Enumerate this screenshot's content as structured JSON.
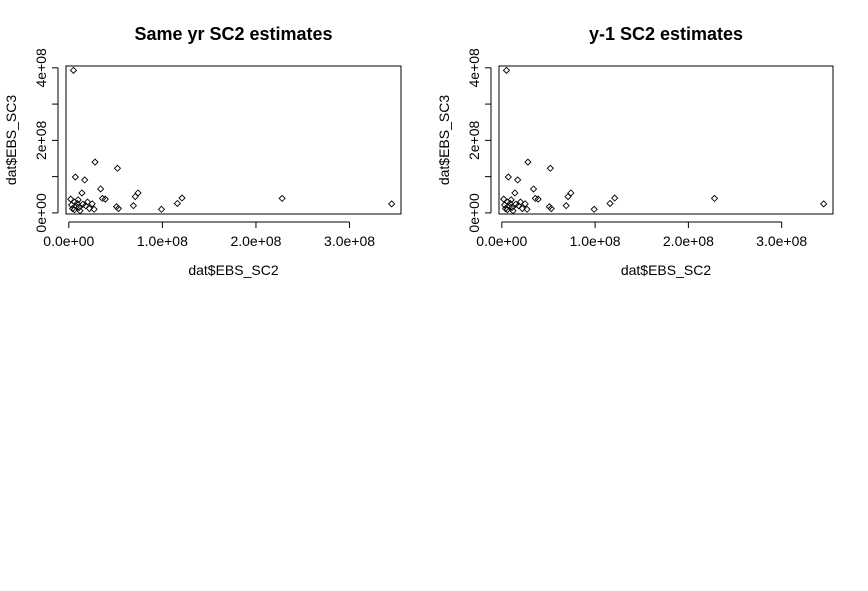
{
  "chart_data": [
    {
      "type": "scatter",
      "title": "Same yr SC2 estimates",
      "xlabel": "dat$EBS_SC2",
      "ylabel": "dat$EBS_SC3",
      "xlim": [
        -3000000,
        355000000
      ],
      "ylim": [
        -3000000,
        405000000
      ],
      "xticks": [
        0,
        100000000,
        200000000,
        300000000
      ],
      "xtick_labels": [
        "0.0e+00",
        "1.0e+08",
        "2.0e+08",
        "3.0e+08"
      ],
      "yticks": [
        0,
        100000000,
        200000000,
        300000000,
        400000000
      ],
      "ytick_labels": [
        "0e+00",
        "",
        "2e+08",
        "",
        "4e+08"
      ],
      "grid": false,
      "points": [
        [
          5000000,
          393000000
        ],
        [
          7000000,
          99000000
        ],
        [
          28000000,
          140000000
        ],
        [
          17000000,
          91000000
        ],
        [
          52000000,
          123000000
        ],
        [
          34000000,
          66000000
        ],
        [
          14000000,
          55000000
        ],
        [
          2000000,
          38000000
        ],
        [
          6000000,
          30000000
        ],
        [
          10000000,
          36000000
        ],
        [
          3000000,
          22000000
        ],
        [
          4000000,
          12000000
        ],
        [
          6000000,
          9000000
        ],
        [
          8000000,
          18000000
        ],
        [
          9000000,
          26000000
        ],
        [
          11000000,
          15000000
        ],
        [
          12000000,
          6000000
        ],
        [
          15000000,
          24000000
        ],
        [
          18000000,
          20000000
        ],
        [
          20000000,
          30000000
        ],
        [
          22000000,
          12000000
        ],
        [
          25000000,
          25000000
        ],
        [
          27000000,
          10000000
        ],
        [
          36000000,
          40000000
        ],
        [
          39000000,
          38000000
        ],
        [
          51000000,
          17000000
        ],
        [
          53000000,
          12000000
        ],
        [
          71000000,
          45000000
        ],
        [
          74000000,
          55000000
        ],
        [
          69000000,
          20000000
        ],
        [
          99000000,
          10000000
        ],
        [
          116000000,
          26000000
        ],
        [
          121000000,
          41000000
        ],
        [
          228000000,
          40000000
        ],
        [
          345000000,
          25000000
        ]
      ]
    },
    {
      "type": "scatter",
      "title": "y-1 SC2 estimates",
      "xlabel": "dat$EBS_SC2",
      "ylabel": "dat$EBS_SC3",
      "xlim": [
        -3000000,
        355000000
      ],
      "ylim": [
        -3000000,
        405000000
      ],
      "xticks": [
        0,
        100000000,
        200000000,
        300000000
      ],
      "xtick_labels": [
        "0.0e+00",
        "1.0e+08",
        "2.0e+08",
        "3.0e+08"
      ],
      "yticks": [
        0,
        100000000,
        200000000,
        300000000,
        400000000
      ],
      "ytick_labels": [
        "0e+00",
        "",
        "2e+08",
        "",
        "4e+08"
      ],
      "grid": false,
      "points": [
        [
          5000000,
          393000000
        ],
        [
          7000000,
          99000000
        ],
        [
          28000000,
          140000000
        ],
        [
          17000000,
          91000000
        ],
        [
          52000000,
          123000000
        ],
        [
          34000000,
          66000000
        ],
        [
          14000000,
          55000000
        ],
        [
          2000000,
          38000000
        ],
        [
          6000000,
          30000000
        ],
        [
          10000000,
          36000000
        ],
        [
          3000000,
          22000000
        ],
        [
          4000000,
          12000000
        ],
        [
          6000000,
          9000000
        ],
        [
          8000000,
          18000000
        ],
        [
          9000000,
          26000000
        ],
        [
          11000000,
          15000000
        ],
        [
          12000000,
          6000000
        ],
        [
          15000000,
          24000000
        ],
        [
          18000000,
          20000000
        ],
        [
          20000000,
          30000000
        ],
        [
          22000000,
          12000000
        ],
        [
          25000000,
          25000000
        ],
        [
          27000000,
          10000000
        ],
        [
          36000000,
          40000000
        ],
        [
          39000000,
          38000000
        ],
        [
          51000000,
          17000000
        ],
        [
          53000000,
          12000000
        ],
        [
          71000000,
          45000000
        ],
        [
          74000000,
          55000000
        ],
        [
          69000000,
          20000000
        ],
        [
          99000000,
          10000000
        ],
        [
          116000000,
          26000000
        ],
        [
          121000000,
          41000000
        ],
        [
          228000000,
          40000000
        ],
        [
          345000000,
          25000000
        ]
      ]
    }
  ]
}
